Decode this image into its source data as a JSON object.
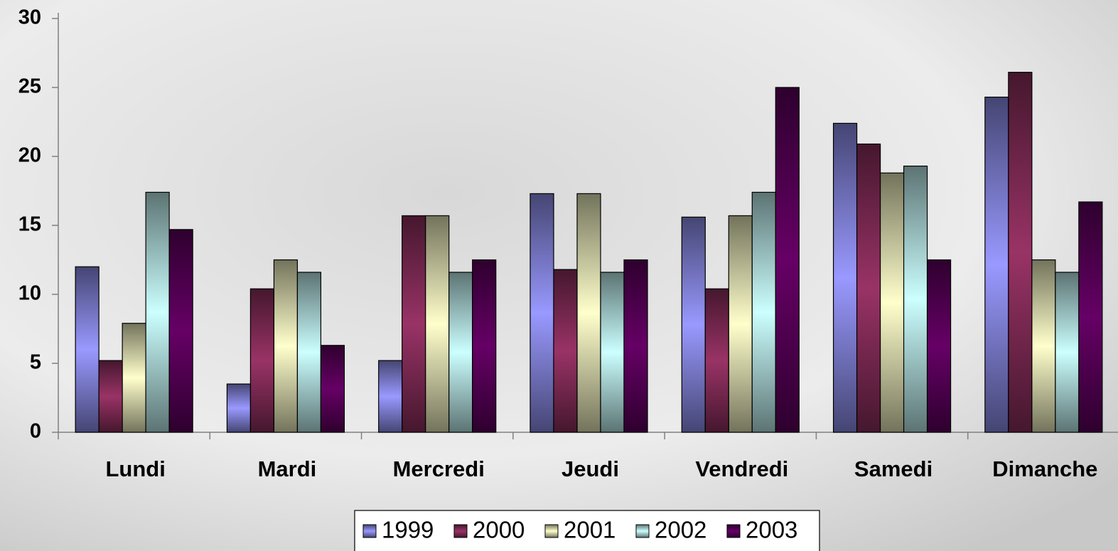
{
  "chart_data": {
    "type": "bar",
    "categories": [
      "Lundi",
      "Mardi",
      "Mercredi",
      "Jeudi",
      "Vendredi",
      "Samedi",
      "Dimanche"
    ],
    "series": [
      {
        "name": "1999",
        "color": "#9999ff",
        "values": [
          12,
          3.5,
          5.2,
          17.3,
          15.6,
          22.4,
          24.3
        ]
      },
      {
        "name": "2000",
        "color": "#993366",
        "values": [
          5.2,
          10.4,
          15.7,
          11.8,
          10.4,
          20.9,
          26.1
        ]
      },
      {
        "name": "2001",
        "color": "#ffffcc",
        "values": [
          7.9,
          12.5,
          15.7,
          17.3,
          15.7,
          18.8,
          12.5
        ]
      },
      {
        "name": "2002",
        "color": "#ccffff",
        "values": [
          17.4,
          11.6,
          11.6,
          11.6,
          17.4,
          19.3,
          11.6
        ]
      },
      {
        "name": "2003",
        "color": "#660066",
        "values": [
          14.7,
          6.3,
          12.5,
          12.5,
          25,
          12.5,
          16.7
        ]
      }
    ],
    "ylim": [
      0,
      30
    ],
    "yticks": [
      0,
      5,
      10,
      15,
      20,
      25,
      30
    ],
    "legend": "bottom"
  }
}
